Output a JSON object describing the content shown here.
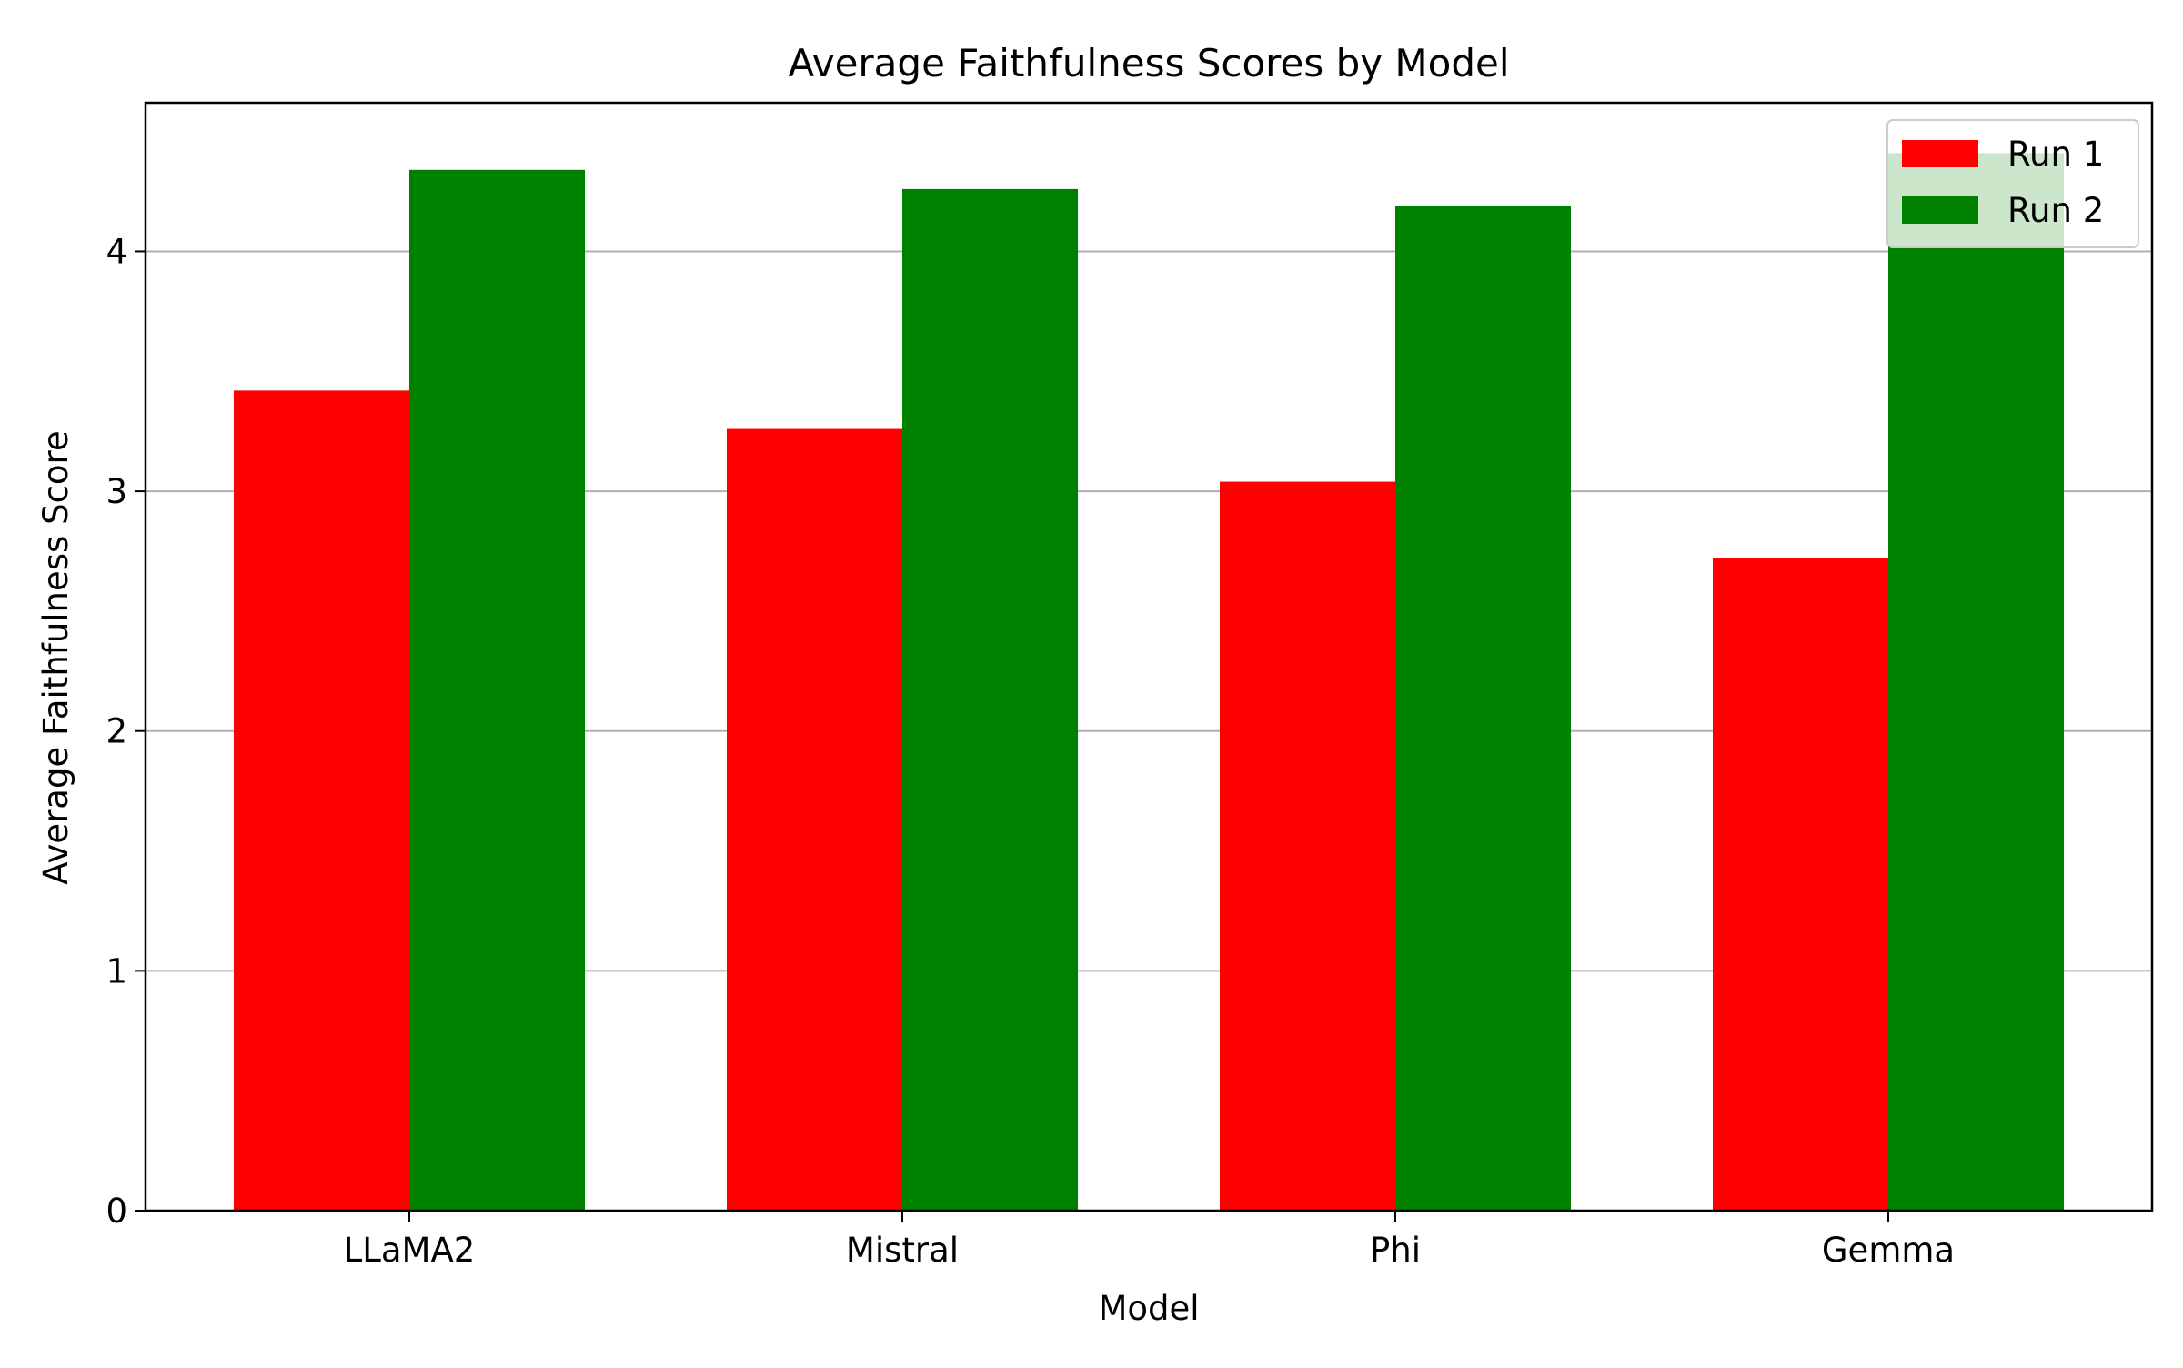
{
  "chart_data": {
    "type": "bar",
    "title": "Average Faithfulness Scores by Model",
    "xlabel": "Model",
    "ylabel": "Average Faithfulness Score",
    "categories": [
      "LLaMA2",
      "Mistral",
      "Phi",
      "Gemma"
    ],
    "series": [
      {
        "name": "Run 1",
        "color": "#ff0000",
        "values": [
          3.42,
          3.26,
          3.04,
          2.72
        ]
      },
      {
        "name": "Run 2",
        "color": "#008000",
        "values": [
          4.34,
          4.26,
          4.19,
          4.41
        ]
      }
    ],
    "ylim": [
      0,
      4.62
    ],
    "yticks": [
      0,
      1,
      2,
      3,
      4
    ],
    "grid": "y",
    "legend_position": "top-right"
  }
}
